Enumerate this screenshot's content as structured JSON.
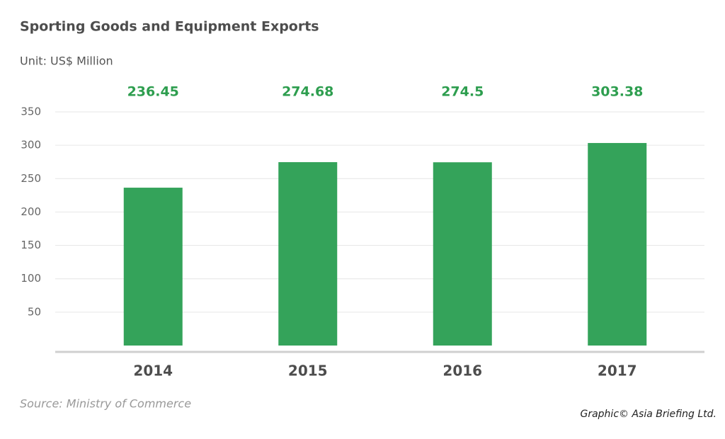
{
  "chart_data": {
    "type": "bar",
    "title": "Sporting Goods and Equipment Exports",
    "subtitle": "Unit: US$ Million",
    "categories": [
      "2014",
      "2015",
      "2016",
      "2017"
    ],
    "values": [
      236.45,
      274.68,
      274.5,
      303.38
    ],
    "color": "#34a35a",
    "label_color": "#2e9e4f",
    "ylim": [
      0,
      350
    ],
    "yticks": [
      50,
      100,
      150,
      200,
      250,
      300,
      350
    ],
    "grid": true,
    "source": "Source: Ministry of Commerce",
    "credit": "Graphic© Asia Briefing Ltd."
  }
}
